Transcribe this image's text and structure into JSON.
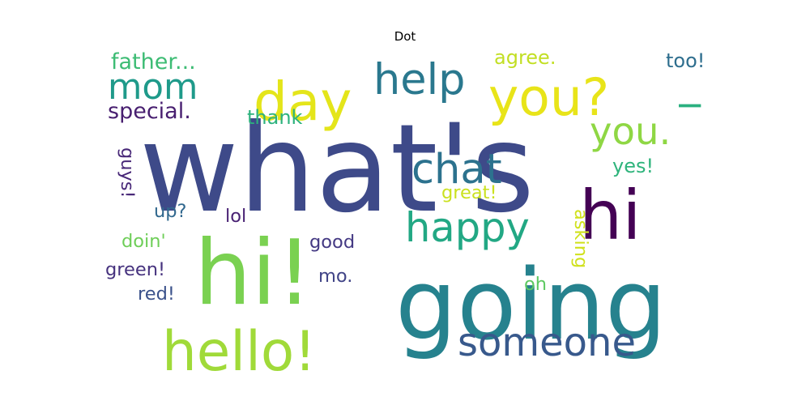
{
  "chart_data": {
    "type": "wordcloud",
    "title": "Dot",
    "words": [
      {
        "text": "what's",
        "weight": 1.0,
        "color": "#3e4a89"
      },
      {
        "text": "going",
        "weight": 0.8,
        "color": "#26828e"
      },
      {
        "text": "hi!",
        "weight": 0.74,
        "color": "#7ad151"
      },
      {
        "text": "hi",
        "weight": 0.56,
        "color": "#440154"
      },
      {
        "text": "hello!",
        "weight": 0.45,
        "color": "#a0da39"
      },
      {
        "text": "day",
        "weight": 0.44,
        "color": "#e4e51a"
      },
      {
        "text": "you?",
        "weight": 0.42,
        "color": "#e8e419"
      },
      {
        "text": "help",
        "weight": 0.35,
        "color": "#2a788e"
      },
      {
        "text": "chat",
        "weight": 0.34,
        "color": "#2c728e"
      },
      {
        "text": "happy",
        "weight": 0.33,
        "color": "#22a884"
      },
      {
        "text": "someone",
        "weight": 0.32,
        "color": "#38598c"
      },
      {
        "text": "you.",
        "weight": 0.31,
        "color": "#8fd744"
      },
      {
        "text": "mom",
        "weight": 0.29,
        "color": "#1f9a8a"
      },
      {
        "text": "I",
        "weight": 0.25,
        "color": "#2ab07f"
      },
      {
        "text": "father...",
        "weight": 0.18,
        "color": "#3dbc74"
      },
      {
        "text": "special.",
        "weight": 0.18,
        "color": "#481f70"
      },
      {
        "text": "agree.",
        "weight": 0.16,
        "color": "#c2df23"
      },
      {
        "text": "too!",
        "weight": 0.16,
        "color": "#2e6e8e"
      },
      {
        "text": "thank",
        "weight": 0.16,
        "color": "#2db27d"
      },
      {
        "text": "yes!",
        "weight": 0.16,
        "color": "#2fb47c"
      },
      {
        "text": "great!",
        "weight": 0.15,
        "color": "#cae11f"
      },
      {
        "text": "guys!",
        "weight": 0.15,
        "color": "#482878"
      },
      {
        "text": "up?",
        "weight": 0.15,
        "color": "#31688e"
      },
      {
        "text": "lol",
        "weight": 0.15,
        "color": "#482173"
      },
      {
        "text": "doin'",
        "weight": 0.15,
        "color": "#6ece58"
      },
      {
        "text": "good",
        "weight": 0.15,
        "color": "#443983"
      },
      {
        "text": "asking",
        "weight": 0.15,
        "color": "#d0e11c"
      },
      {
        "text": "green!",
        "weight": 0.15,
        "color": "#46327e"
      },
      {
        "text": "mo.",
        "weight": 0.15,
        "color": "#414487"
      },
      {
        "text": "red!",
        "weight": 0.15,
        "color": "#3b528b"
      },
      {
        "text": "oh",
        "weight": 0.15,
        "color": "#5ec962"
      }
    ]
  }
}
